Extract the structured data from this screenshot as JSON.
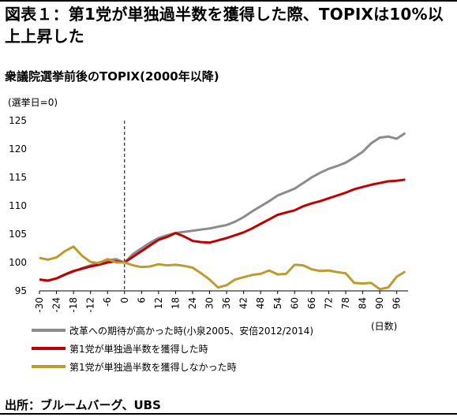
{
  "header": {
    "title": "図表１：第1党が単独過半数を獲得した際、TOPIXは10%以上上昇した",
    "subtitle": "衆議院選挙前後のTOPIX(2000年以降)"
  },
  "footer": {
    "source": "出所：ブルームバーグ、UBS"
  },
  "chart_data": {
    "type": "line",
    "ylabel": "(選挙日=0)",
    "xlabel": "(日数)",
    "ylim": [
      95,
      125
    ],
    "xlim": [
      -30,
      100
    ],
    "yticks": [
      95,
      100,
      105,
      110,
      115,
      120,
      125
    ],
    "xticks": [
      -30,
      -24,
      -18,
      -12,
      -6,
      0,
      6,
      12,
      18,
      24,
      30,
      36,
      42,
      48,
      54,
      60,
      66,
      72,
      78,
      84,
      90,
      96
    ],
    "event_line_x": 0,
    "legend_position": "bottom",
    "series": [
      {
        "name": "改革への期待が高かった時(小泉2005、安倍2012/2014)",
        "color": "#8c8c8c",
        "x": [
          -30,
          -27,
          -24,
          -21,
          -18,
          -15,
          -12,
          -9,
          -6,
          -3,
          0,
          3,
          6,
          9,
          12,
          15,
          18,
          21,
          24,
          27,
          30,
          33,
          36,
          39,
          42,
          45,
          48,
          51,
          54,
          57,
          60,
          63,
          66,
          69,
          72,
          75,
          78,
          81,
          84,
          87,
          90,
          93,
          96,
          99
        ],
        "values": [
          97.0,
          96.8,
          97.2,
          97.8,
          98.4,
          99.0,
          99.5,
          100.0,
          100.4,
          100.6,
          100.0,
          101.5,
          102.5,
          103.5,
          104.3,
          104.8,
          105.2,
          105.4,
          105.6,
          105.8,
          106.0,
          106.3,
          106.6,
          107.2,
          108.0,
          109.0,
          109.9,
          110.8,
          111.8,
          112.4,
          113.0,
          114.0,
          115.0,
          115.8,
          116.5,
          117.0,
          117.6,
          118.5,
          119.5,
          121.0,
          122.0,
          122.2,
          121.8,
          122.8
        ]
      },
      {
        "name": "第1党が単独過半数を獲得した時",
        "color": "#c00000",
        "x": [
          -30,
          -27,
          -24,
          -21,
          -18,
          -15,
          -12,
          -9,
          -6,
          -3,
          0,
          3,
          6,
          9,
          12,
          15,
          18,
          21,
          24,
          27,
          30,
          33,
          36,
          39,
          42,
          45,
          48,
          51,
          54,
          57,
          60,
          63,
          66,
          69,
          72,
          75,
          78,
          81,
          84,
          87,
          90,
          93,
          96,
          99
        ],
        "values": [
          97.0,
          96.8,
          97.2,
          97.9,
          98.5,
          98.9,
          99.3,
          99.6,
          100.0,
          100.2,
          100.0,
          101.0,
          102.0,
          103.0,
          104.0,
          104.5,
          105.2,
          104.6,
          103.8,
          103.6,
          103.5,
          103.9,
          104.3,
          104.8,
          105.3,
          106.0,
          106.8,
          107.6,
          108.4,
          108.8,
          109.2,
          109.9,
          110.4,
          110.8,
          111.3,
          111.8,
          112.3,
          112.9,
          113.3,
          113.7,
          114.0,
          114.3,
          114.4,
          114.6
        ]
      },
      {
        "name": "第1党が単独過半数を獲得しなかった時",
        "color": "#bf9a2f",
        "x": [
          -30,
          -27,
          -24,
          -21,
          -18,
          -15,
          -12,
          -9,
          -6,
          -3,
          0,
          3,
          6,
          9,
          12,
          15,
          18,
          21,
          24,
          27,
          30,
          33,
          36,
          39,
          42,
          45,
          48,
          51,
          54,
          57,
          60,
          63,
          66,
          69,
          72,
          75,
          78,
          81,
          84,
          87,
          90,
          93,
          96,
          99
        ],
        "values": [
          100.8,
          100.5,
          100.9,
          102.0,
          102.8,
          101.2,
          100.1,
          99.9,
          100.6,
          100.0,
          100.0,
          99.5,
          99.2,
          99.3,
          99.7,
          99.5,
          99.6,
          99.4,
          99.1,
          98.1,
          97.0,
          95.6,
          96.0,
          97.0,
          97.4,
          97.8,
          98.0,
          98.6,
          97.9,
          98.0,
          99.6,
          99.5,
          98.8,
          98.5,
          98.6,
          98.3,
          98.1,
          96.4,
          96.3,
          96.4,
          95.3,
          95.6,
          97.5,
          98.4
        ]
      }
    ]
  }
}
